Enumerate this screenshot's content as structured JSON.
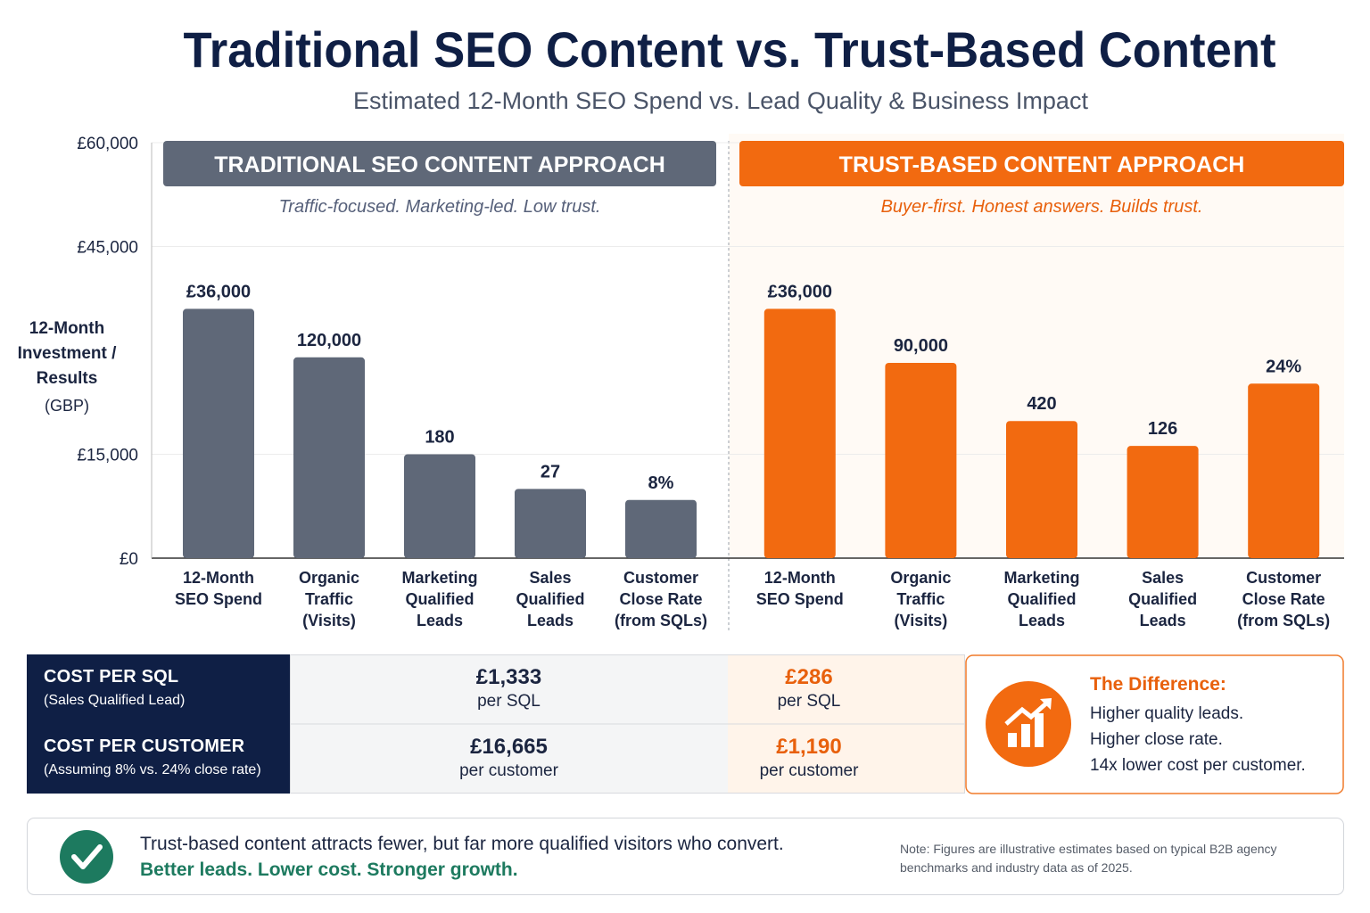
{
  "title": "Traditional SEO Content vs. Trust-Based Content",
  "subtitle": "Estimated 12-Month SEO Spend vs. Lead Quality & Business Impact",
  "chart_data": {
    "type": "bar",
    "y_label": "12-Month Investment / Results",
    "y_unit": "(GBP)",
    "ylim": [
      0,
      60000
    ],
    "yticks": [
      {
        "value": 0,
        "label": "£0"
      },
      {
        "value": 15000,
        "label": "£15,000"
      },
      {
        "value": 45000,
        "label": "£45,000"
      },
      {
        "value": 60000,
        "label": "£60,000"
      }
    ],
    "grid": true,
    "panels": [
      {
        "title": "TRADITIONAL SEO CONTENT APPROACH",
        "subtitle": "Traffic-focused. Marketing-led. Low trust.",
        "color": "#5f6878",
        "categories": [
          "12-Month SEO Spend",
          "Organic Traffic (Visits)",
          "Marketing Qualified Leads",
          "Sales Qualified Leads",
          "Customer Close Rate (from SQLs)"
        ],
        "values": [
          36000,
          29000,
          15000,
          10000,
          8400
        ],
        "bar_labels": [
          "£36,000",
          "120,000",
          "180",
          "27",
          "8%"
        ]
      },
      {
        "title": "TRUST-BASED CONTENT APPROACH",
        "subtitle": "Buyer-first. Honest answers. Builds trust.",
        "color": "#f26a10",
        "categories": [
          "12-Month SEO Spend",
          "Organic Traffic (Visits)",
          "Marketing Qualified Leads",
          "Sales Qualified Leads",
          "Customer Close Rate (from SQLs)"
        ],
        "values": [
          36000,
          28200,
          19800,
          16200,
          25200
        ],
        "bar_labels": [
          "£36,000",
          "90,000",
          "420",
          "126",
          "24%"
        ]
      }
    ]
  },
  "table": {
    "rows": [
      {
        "label": "COST PER SQL",
        "note": "(Sales Qualified Lead)",
        "traditional": "£1,333",
        "traditional_unit": "per SQL",
        "trust": "£286",
        "trust_unit": "per SQL"
      },
      {
        "label": "COST PER CUSTOMER",
        "note": "(Assuming 8% vs. 24% close rate)",
        "traditional": "£16,665",
        "traditional_unit": "per customer",
        "trust": "£1,190",
        "trust_unit": "per customer"
      }
    ]
  },
  "difference": {
    "title": "The Difference:",
    "lines": [
      "Higher quality leads.",
      "Higher close rate.",
      "14x lower cost per customer."
    ]
  },
  "footer": {
    "text": "Trust-based content attracts fewer, but far more qualified visitors who convert.",
    "highlight": "Better leads. Lower cost. Stronger growth.",
    "note": "Note: Figures are illustrative estimates based on typical B2B agency benchmarks and industry data as of 2025."
  }
}
